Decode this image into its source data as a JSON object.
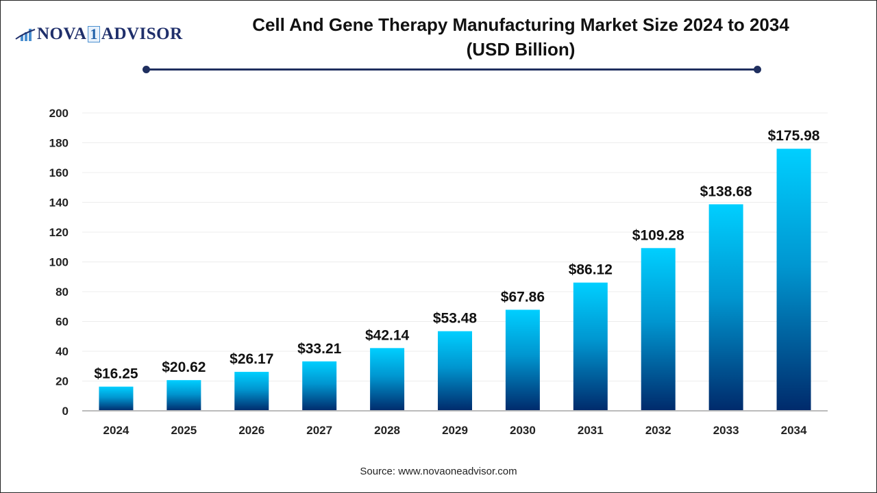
{
  "logo": {
    "text_left": "NOVA",
    "text_one": "1",
    "text_right": "ADVISOR"
  },
  "title_line1": "Cell And Gene Therapy Manufacturing Market  Size 2024 to 2034",
  "title_line2": "(USD Billion)",
  "source": "Source: www.novaoneadvisor.com",
  "colors": {
    "bar_top": "#00cfff",
    "bar_bottom": "#002a6b",
    "rule": "#1f2f5f"
  },
  "chart_data": {
    "type": "bar",
    "title": "Cell And Gene Therapy Manufacturing Market  Size 2024 to 2034 (USD Billion)",
    "categories": [
      "2024",
      "2025",
      "2026",
      "2027",
      "2028",
      "2029",
      "2030",
      "2031",
      "2032",
      "2033",
      "2034"
    ],
    "values": [
      16.25,
      20.62,
      26.17,
      33.21,
      42.14,
      53.48,
      67.86,
      86.12,
      109.28,
      138.68,
      175.98
    ],
    "data_labels": [
      "$16.25",
      "$20.62",
      "$26.17",
      "$33.21",
      "$42.14",
      "$53.48",
      "$67.86",
      "$86.12",
      "$109.28",
      "$138.68",
      "$175.98"
    ],
    "ylim": [
      0,
      200
    ],
    "yticks": [
      0,
      20,
      40,
      60,
      80,
      100,
      120,
      140,
      160,
      180,
      200
    ],
    "grid": true,
    "legend": "none"
  }
}
